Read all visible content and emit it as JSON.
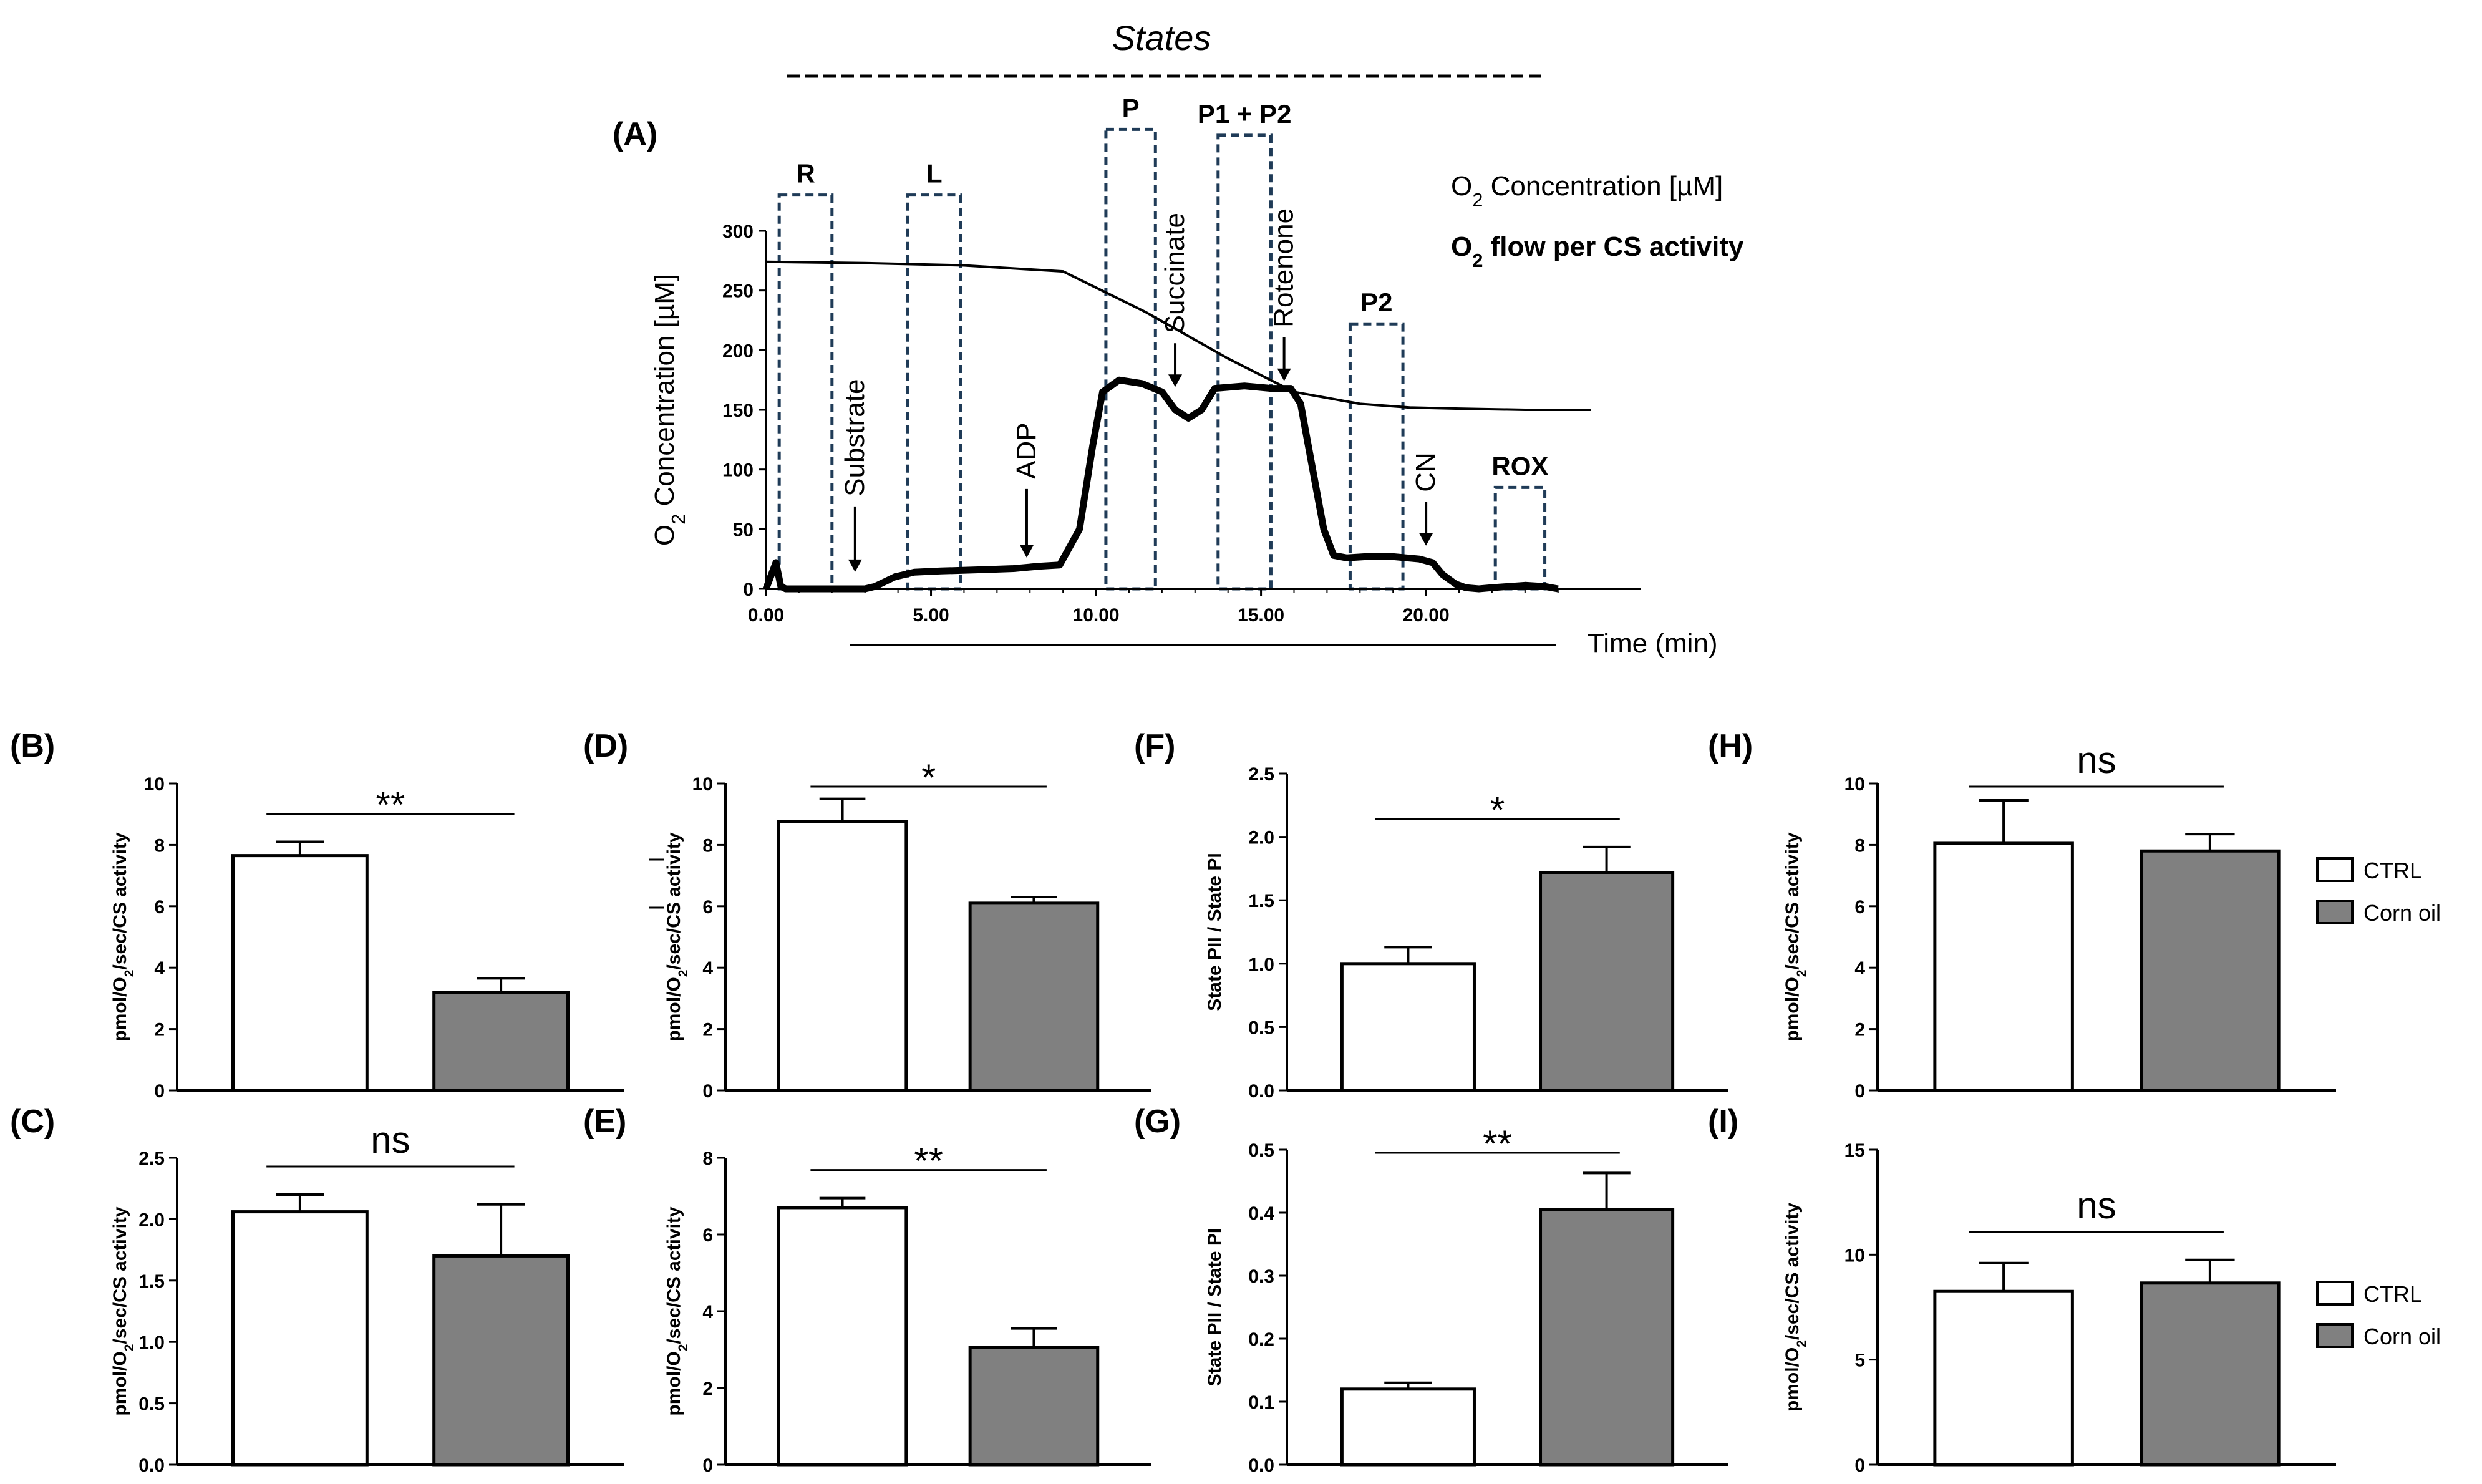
{
  "header": {
    "states_label": "States"
  },
  "colors": {
    "ctrl": "#ffffff",
    "corn_oil": "#808080",
    "axis": "#000000",
    "box": "#1f3b57"
  },
  "chart_data": [
    {
      "id": "A",
      "type": "line",
      "panel_label": "(A)",
      "ylabel": "O2 Concentration [µM]",
      "ylabel_parts": {
        "main": "O",
        "sub": "2",
        "rest": " Concentration [µM]"
      },
      "xlabel": "Time (min)",
      "ylim": [
        0,
        300
      ],
      "xlim": [
        0,
        26.5
      ],
      "y_ticks": [
        "0",
        "50",
        "100",
        "150",
        "200",
        "250",
        "300"
      ],
      "x_ticks": [
        "0.00",
        "5.00",
        "10.00",
        "15.00",
        "20.00"
      ],
      "legend": {
        "concentration": {
          "main": "O",
          "sub": "2",
          "rest": " Concentration [µM]"
        },
        "flow": {
          "main": "O",
          "sub": "2",
          "rest": " flow per CS activity"
        }
      },
      "states": [
        {
          "label": "R",
          "x0": 0.4,
          "x1": 2.0,
          "ytop": 330
        },
        {
          "label": "L",
          "x0": 4.3,
          "x1": 5.9,
          "ytop": 330
        },
        {
          "label": "P",
          "x0": 10.3,
          "x1": 11.8,
          "ytop": 385
        },
        {
          "label": "P1 + P2",
          "x0": 13.7,
          "x1": 15.3,
          "ytop": 380
        },
        {
          "label": "P2",
          "x0": 17.7,
          "x1": 19.3,
          "ytop": 222
        },
        {
          "label": "ROX",
          "x0": 22.1,
          "x1": 23.6,
          "ytop": 85
        }
      ],
      "injections": [
        {
          "label": "Substrate",
          "x": 2.7,
          "y_tip": 10
        },
        {
          "label": "ADP",
          "x": 7.9,
          "y_tip": 22
        },
        {
          "label": "Succinate",
          "x": 12.4,
          "y_tip": 165
        },
        {
          "label": "Rotenone",
          "x": 15.7,
          "y_tip": 170
        },
        {
          "label": "CN",
          "x": 20.0,
          "y_tip": 32
        }
      ],
      "series": [
        {
          "name": "O2 Concentration [µM]",
          "x": [
            0,
            3,
            6,
            9,
            11.5,
            14,
            16,
            18,
            19.5,
            21,
            23,
            25
          ],
          "y": [
            274,
            273,
            271,
            266,
            232,
            193,
            165,
            155,
            152,
            151,
            150,
            150
          ]
        },
        {
          "name": "O2 flow per CS activity",
          "x": [
            0,
            0.3,
            0.45,
            0.6,
            0.8,
            2.9,
            3.0,
            3.3,
            3.9,
            4.5,
            5.3,
            6.5,
            7.5,
            8.3,
            8.9,
            9.5,
            9.9,
            10.2,
            10.7,
            11.4,
            12.0,
            12.4,
            12.8,
            13.2,
            13.6,
            14.5,
            15.3,
            15.9,
            16.2,
            16.5,
            16.9,
            17.2,
            17.6,
            18.2,
            19.0,
            19.8,
            20.2,
            20.5,
            20.9,
            21.2,
            21.6,
            22.0,
            22.5,
            23.0,
            23.6,
            24.0
          ],
          "y": [
            0,
            22,
            2,
            0,
            0,
            0,
            0,
            2,
            10,
            14,
            15,
            16,
            17,
            19,
            20,
            50,
            120,
            165,
            175,
            172,
            165,
            150,
            143,
            150,
            168,
            170,
            168,
            168,
            155,
            110,
            50,
            28,
            26,
            27,
            27,
            25,
            22,
            12,
            4,
            1,
            0,
            1,
            2,
            3,
            2,
            0
          ]
        }
      ]
    },
    {
      "id": "B",
      "type": "bar",
      "panel_label": "(B)",
      "ylabel": "pmol/O2/sec/CS activity",
      "ylabel_parts": {
        "main": "pmol/O",
        "sub": "2",
        "rest": "/sec/CS activity"
      },
      "ylim": [
        0,
        10
      ],
      "y_ticks": [
        "0",
        "2",
        "4",
        "6",
        "8",
        "10"
      ],
      "categories": [
        "CTRL",
        "Corn oil"
      ],
      "values": [
        7.65,
        3.2
      ],
      "errors": [
        0.45,
        0.45
      ],
      "significance": "**"
    },
    {
      "id": "C",
      "type": "bar",
      "panel_label": "(C)",
      "ylabel": "pmol/O2/sec/CS activity",
      "ylabel_parts": {
        "main": "pmol/O",
        "sub": "2",
        "rest": "/sec/CS activity"
      },
      "ylim": [
        0,
        2.5
      ],
      "y_ticks": [
        "0.0",
        "0.5",
        "1.0",
        "1.5",
        "2.0",
        "2.5"
      ],
      "categories": [
        "CTRL",
        "Corn oil"
      ],
      "values": [
        2.06,
        1.7
      ],
      "errors": [
        0.14,
        0.42
      ],
      "significance": "ns"
    },
    {
      "id": "D",
      "type": "bar",
      "panel_label": "(D)",
      "ylabel": "pmol/O2/sec/CS activity",
      "ylabel_parts": {
        "main": "pmol/O",
        "sub": "2",
        "rest": "/sec/CS activity"
      },
      "ylim": [
        0,
        10
      ],
      "y_ticks": [
        "0",
        "2",
        "4",
        "6",
        "8",
        "10"
      ],
      "categories": [
        "CTRL",
        "Corn oil"
      ],
      "values": [
        8.75,
        6.1
      ],
      "errors": [
        0.75,
        0.2
      ],
      "significance": "*"
    },
    {
      "id": "E",
      "type": "bar",
      "panel_label": "(E)",
      "ylabel": "pmol/O2/sec/CS activity",
      "ylabel_parts": {
        "main": "pmol/O",
        "sub": "2",
        "rest": "/sec/CS activity"
      },
      "ylim": [
        0,
        8
      ],
      "y_ticks": [
        "0",
        "2",
        "4",
        "6",
        "8"
      ],
      "categories": [
        "CTRL",
        "Corn oil"
      ],
      "values": [
        6.7,
        3.05
      ],
      "errors": [
        0.25,
        0.5
      ],
      "significance": "**"
    },
    {
      "id": "F",
      "type": "bar",
      "panel_label": "(F)",
      "ylabel": "State PII / State PI",
      "ylim": [
        0,
        2.5
      ],
      "y_ticks": [
        "0.0",
        "0.5",
        "1.0",
        "1.5",
        "2.0",
        "2.5"
      ],
      "categories": [
        "CTRL",
        "Corn oil"
      ],
      "values": [
        1.0,
        1.72
      ],
      "errors": [
        0.13,
        0.2
      ],
      "significance": "*"
    },
    {
      "id": "G",
      "type": "bar",
      "panel_label": "(G)",
      "ylabel": "State PII / State PI",
      "ylim": [
        0,
        0.5
      ],
      "y_ticks": [
        "0.0",
        "0.1",
        "0.2",
        "0.3",
        "0.4",
        "0.5"
      ],
      "categories": [
        "CTRL",
        "Corn oil"
      ],
      "values": [
        0.12,
        0.405
      ],
      "errors": [
        0.01,
        0.058
      ],
      "significance": "**"
    },
    {
      "id": "H",
      "type": "bar",
      "panel_label": "(H)",
      "ylabel": "pmol/O2/sec/CS activity",
      "ylabel_parts": {
        "main": "pmol/O",
        "sub": "2",
        "rest": "/sec/CS activity"
      },
      "ylim": [
        0,
        10
      ],
      "y_ticks": [
        "0",
        "2",
        "4",
        "6",
        "8",
        "10"
      ],
      "categories": [
        "CTRL",
        "Corn oil"
      ],
      "values": [
        8.05,
        7.8
      ],
      "errors": [
        1.4,
        0.55
      ],
      "significance": "ns",
      "legend": [
        "CTRL",
        "Corn oil"
      ]
    },
    {
      "id": "I",
      "type": "bar",
      "panel_label": "(I)",
      "ylabel": "pmol/O2/sec/CS activity",
      "ylabel_parts": {
        "main": "pmol/O",
        "sub": "2",
        "rest": "/sec/CS activity"
      },
      "ylim": [
        0,
        15
      ],
      "y_ticks": [
        "0",
        "5",
        "10",
        "15"
      ],
      "categories": [
        "CTRL",
        "Corn oil"
      ],
      "values": [
        8.25,
        8.65
      ],
      "errors": [
        1.35,
        1.1
      ],
      "significance": "ns",
      "legend": [
        "CTRL",
        "Corn oil"
      ]
    }
  ]
}
